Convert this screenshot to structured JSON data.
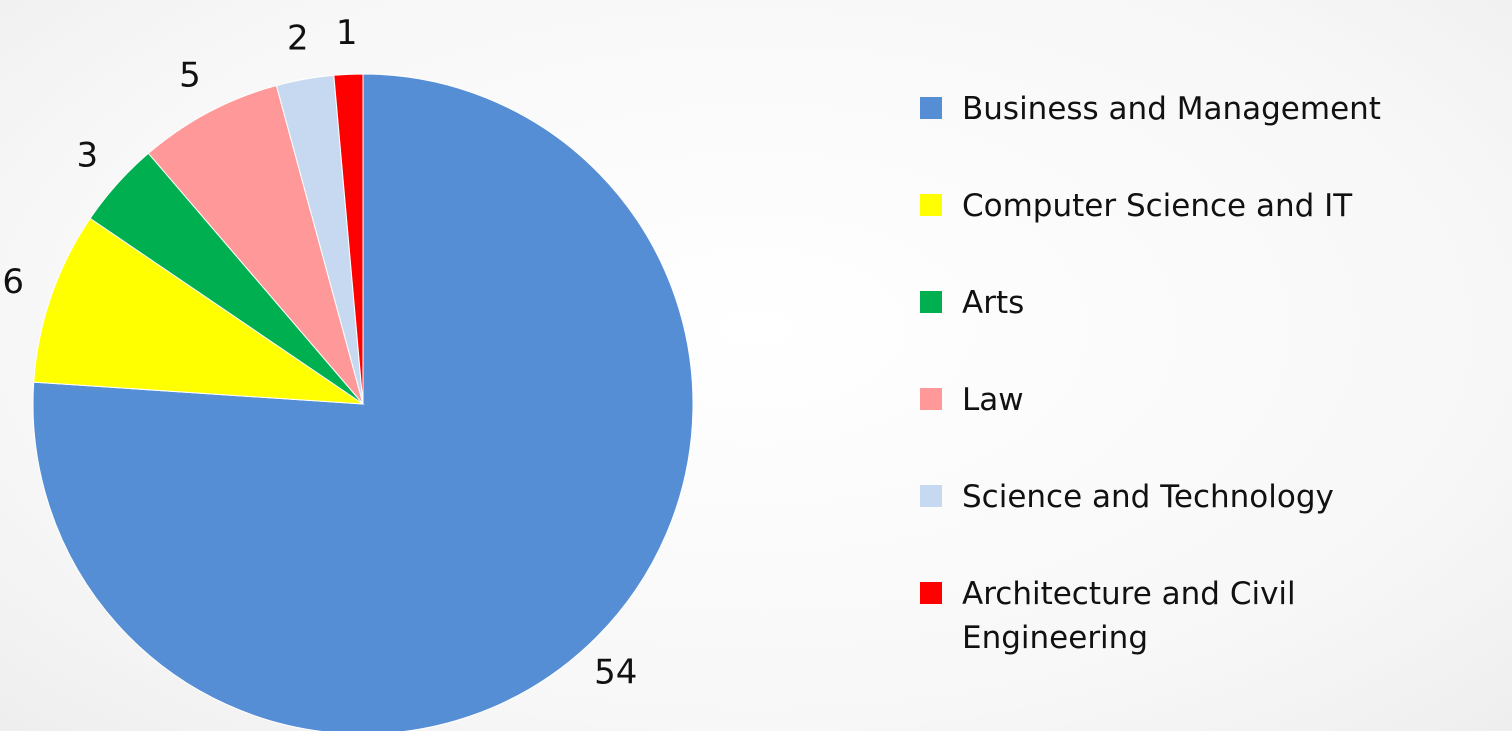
{
  "chart_data": {
    "type": "pie",
    "categories": [
      "Business and Management",
      "Computer Science and IT",
      "Arts",
      "Law",
      "Science and Technology",
      "Architecture and Civil Engineering"
    ],
    "values": [
      54,
      6,
      3,
      5,
      2,
      1
    ],
    "colors": [
      "#558ed5",
      "#ffff00",
      "#00b050",
      "#ff9999",
      "#c6d9f1",
      "#ff0000"
    ],
    "legend": "right"
  }
}
